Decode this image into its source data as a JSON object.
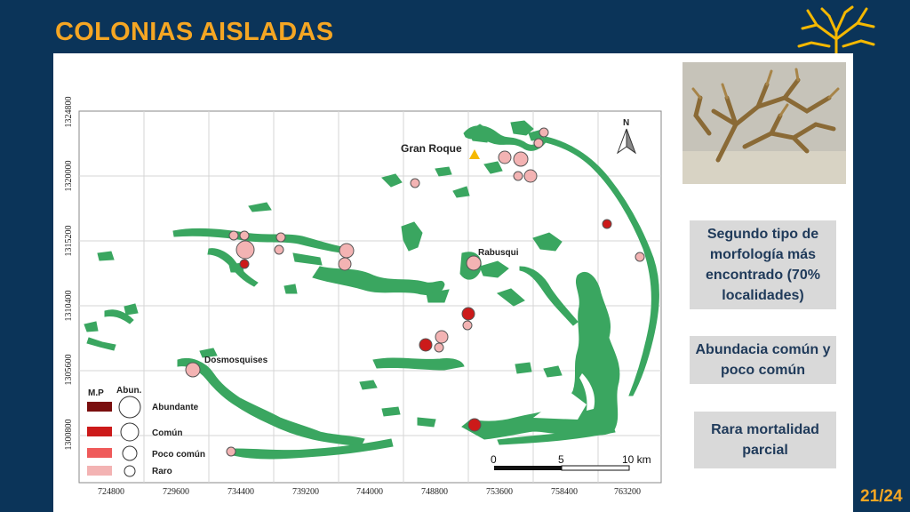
{
  "slide": {
    "title": "COLONIAS AISLADAS",
    "page_number": "21/24"
  },
  "map": {
    "x_ticks": [
      "724800",
      "729600",
      "734400",
      "739200",
      "744000",
      "748800",
      "753600",
      "758400",
      "763200"
    ],
    "y_ticks": [
      "1324800",
      "1320000",
      "1315200",
      "1310400",
      "1305600",
      "1300800"
    ],
    "place_labels": {
      "gran_roque": "Gran Roque",
      "rabusqui": "Rabusqui",
      "dosmosquises": "Dosmosquises"
    },
    "north_label": "N",
    "scale_bar": {
      "labels": [
        "0",
        "5",
        "10 km"
      ]
    },
    "legend": {
      "mp_header": "M.P",
      "abun_header": "Abun.",
      "items": [
        {
          "label": "Abundante",
          "color": "#7a0e0e"
        },
        {
          "label": "Común",
          "color": "#cc1a1a"
        },
        {
          "label": "Poco común",
          "color": "#ef5a5a"
        },
        {
          "label": "Raro",
          "color": "#f3b3b3"
        }
      ]
    },
    "colors": {
      "land": "#3aa660",
      "grid": "#d5d5d5",
      "marker_triangle": "#f5b800"
    }
  },
  "info_boxes": [
    {
      "text": "Segundo tipo de morfología más encontrado (70% localidades)"
    },
    {
      "text": "Abundacia común y poco común"
    },
    {
      "text": "Rara mortalidad parcial"
    }
  ]
}
